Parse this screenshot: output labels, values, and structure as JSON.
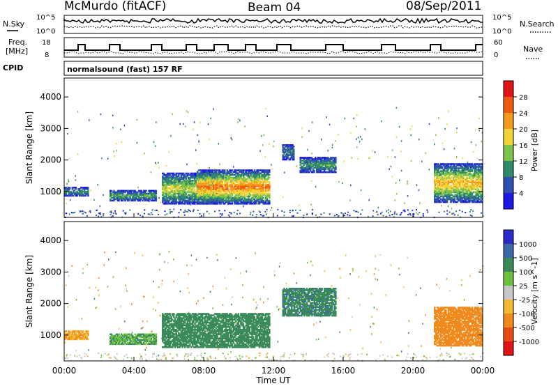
{
  "header": {
    "station": "McMurdo (fitACF)",
    "beam": "Beam 04",
    "date": "08/Sep/2011"
  },
  "status_panel": {
    "nsky_label": "N.Sky",
    "nsearch_label": "N.Search",
    "freq_label_line1": "Freq.",
    "freq_label_line2": "[MHz]",
    "nave_label": "Nave",
    "cpid_label": "CPID",
    "program": "normalsound (fast) 157 RF",
    "noise_ticks_left": [
      "10^5",
      "10^0"
    ],
    "noise_ticks_right": [
      "10^5",
      "10^0"
    ],
    "freq_ticks": [
      "18",
      "8"
    ],
    "nave_ticks": [
      "60",
      "0"
    ]
  },
  "axes": {
    "x_label": "Time UT",
    "x_ticks": [
      "00:00",
      "04:00",
      "08:00",
      "12:00",
      "16:00",
      "20:00",
      "00:00"
    ],
    "y_label": "Slant Range [km]",
    "y_ticks": [
      "1000",
      "2000",
      "3000",
      "4000"
    ]
  },
  "power_colorbar": {
    "label": "Power [dB]",
    "ticks": [
      "4",
      "8",
      "12",
      "16",
      "20",
      "24",
      "28"
    ],
    "colors": [
      "#1a1ae6",
      "#2f4fb0",
      "#2f8a6a",
      "#7ec24a",
      "#f2d43a",
      "#f59a1c",
      "#ee5a14",
      "#e01414"
    ]
  },
  "velocity_colorbar": {
    "label": "Velocity [m s^-1]",
    "ticks": [
      "1000",
      "500",
      "100",
      "25",
      "-25",
      "-100",
      "-500",
      "-1000"
    ],
    "colors": [
      "#2a2ac8",
      "#3d68a8",
      "#3a8a5a",
      "#6cc23a",
      "#c8c8c8",
      "#f2b830",
      "#f08a1c",
      "#ea4a14",
      "#e01414"
    ]
  },
  "chart_data": {
    "type": "heatmap",
    "x_range_hours": [
      0,
      24
    ],
    "y_range_km": [
      180,
      4600
    ],
    "panels": [
      {
        "name": "Power",
        "regions": [
          {
            "t0": 0.0,
            "t1": 1.4,
            "r0": 850,
            "r1": 1150,
            "value_db": 12
          },
          {
            "t0": 2.6,
            "t1": 5.3,
            "r0": 700,
            "r1": 1050,
            "value_db": 14
          },
          {
            "t0": 5.6,
            "t1": 9.0,
            "r0": 600,
            "r1": 1600,
            "value_db": 18
          },
          {
            "t0": 7.6,
            "t1": 11.8,
            "r0": 600,
            "r1": 1700,
            "value_db": 26
          },
          {
            "t0": 12.5,
            "t1": 13.2,
            "r0": 2000,
            "r1": 2500,
            "value_db": 10
          },
          {
            "t0": 13.5,
            "t1": 15.6,
            "r0": 1600,
            "r1": 2100,
            "value_db": 12
          },
          {
            "t0": 21.2,
            "t1": 24.0,
            "r0": 650,
            "r1": 1900,
            "value_db": 22
          }
        ]
      },
      {
        "name": "Velocity",
        "regions": [
          {
            "t0": 0.0,
            "t1": 1.4,
            "r0": 850,
            "r1": 1150,
            "value_ms": -100
          },
          {
            "t0": 2.6,
            "t1": 5.3,
            "r0": 700,
            "r1": 1050,
            "value_ms": 100
          },
          {
            "t0": 5.6,
            "t1": 11.8,
            "r0": 600,
            "r1": 1700,
            "value_ms": 300
          },
          {
            "t0": 12.5,
            "t1": 15.6,
            "r0": 1600,
            "r1": 2500,
            "value_ms": 400
          },
          {
            "t0": 21.2,
            "t1": 24.0,
            "r0": 650,
            "r1": 1900,
            "value_ms": -200
          }
        ]
      }
    ]
  }
}
